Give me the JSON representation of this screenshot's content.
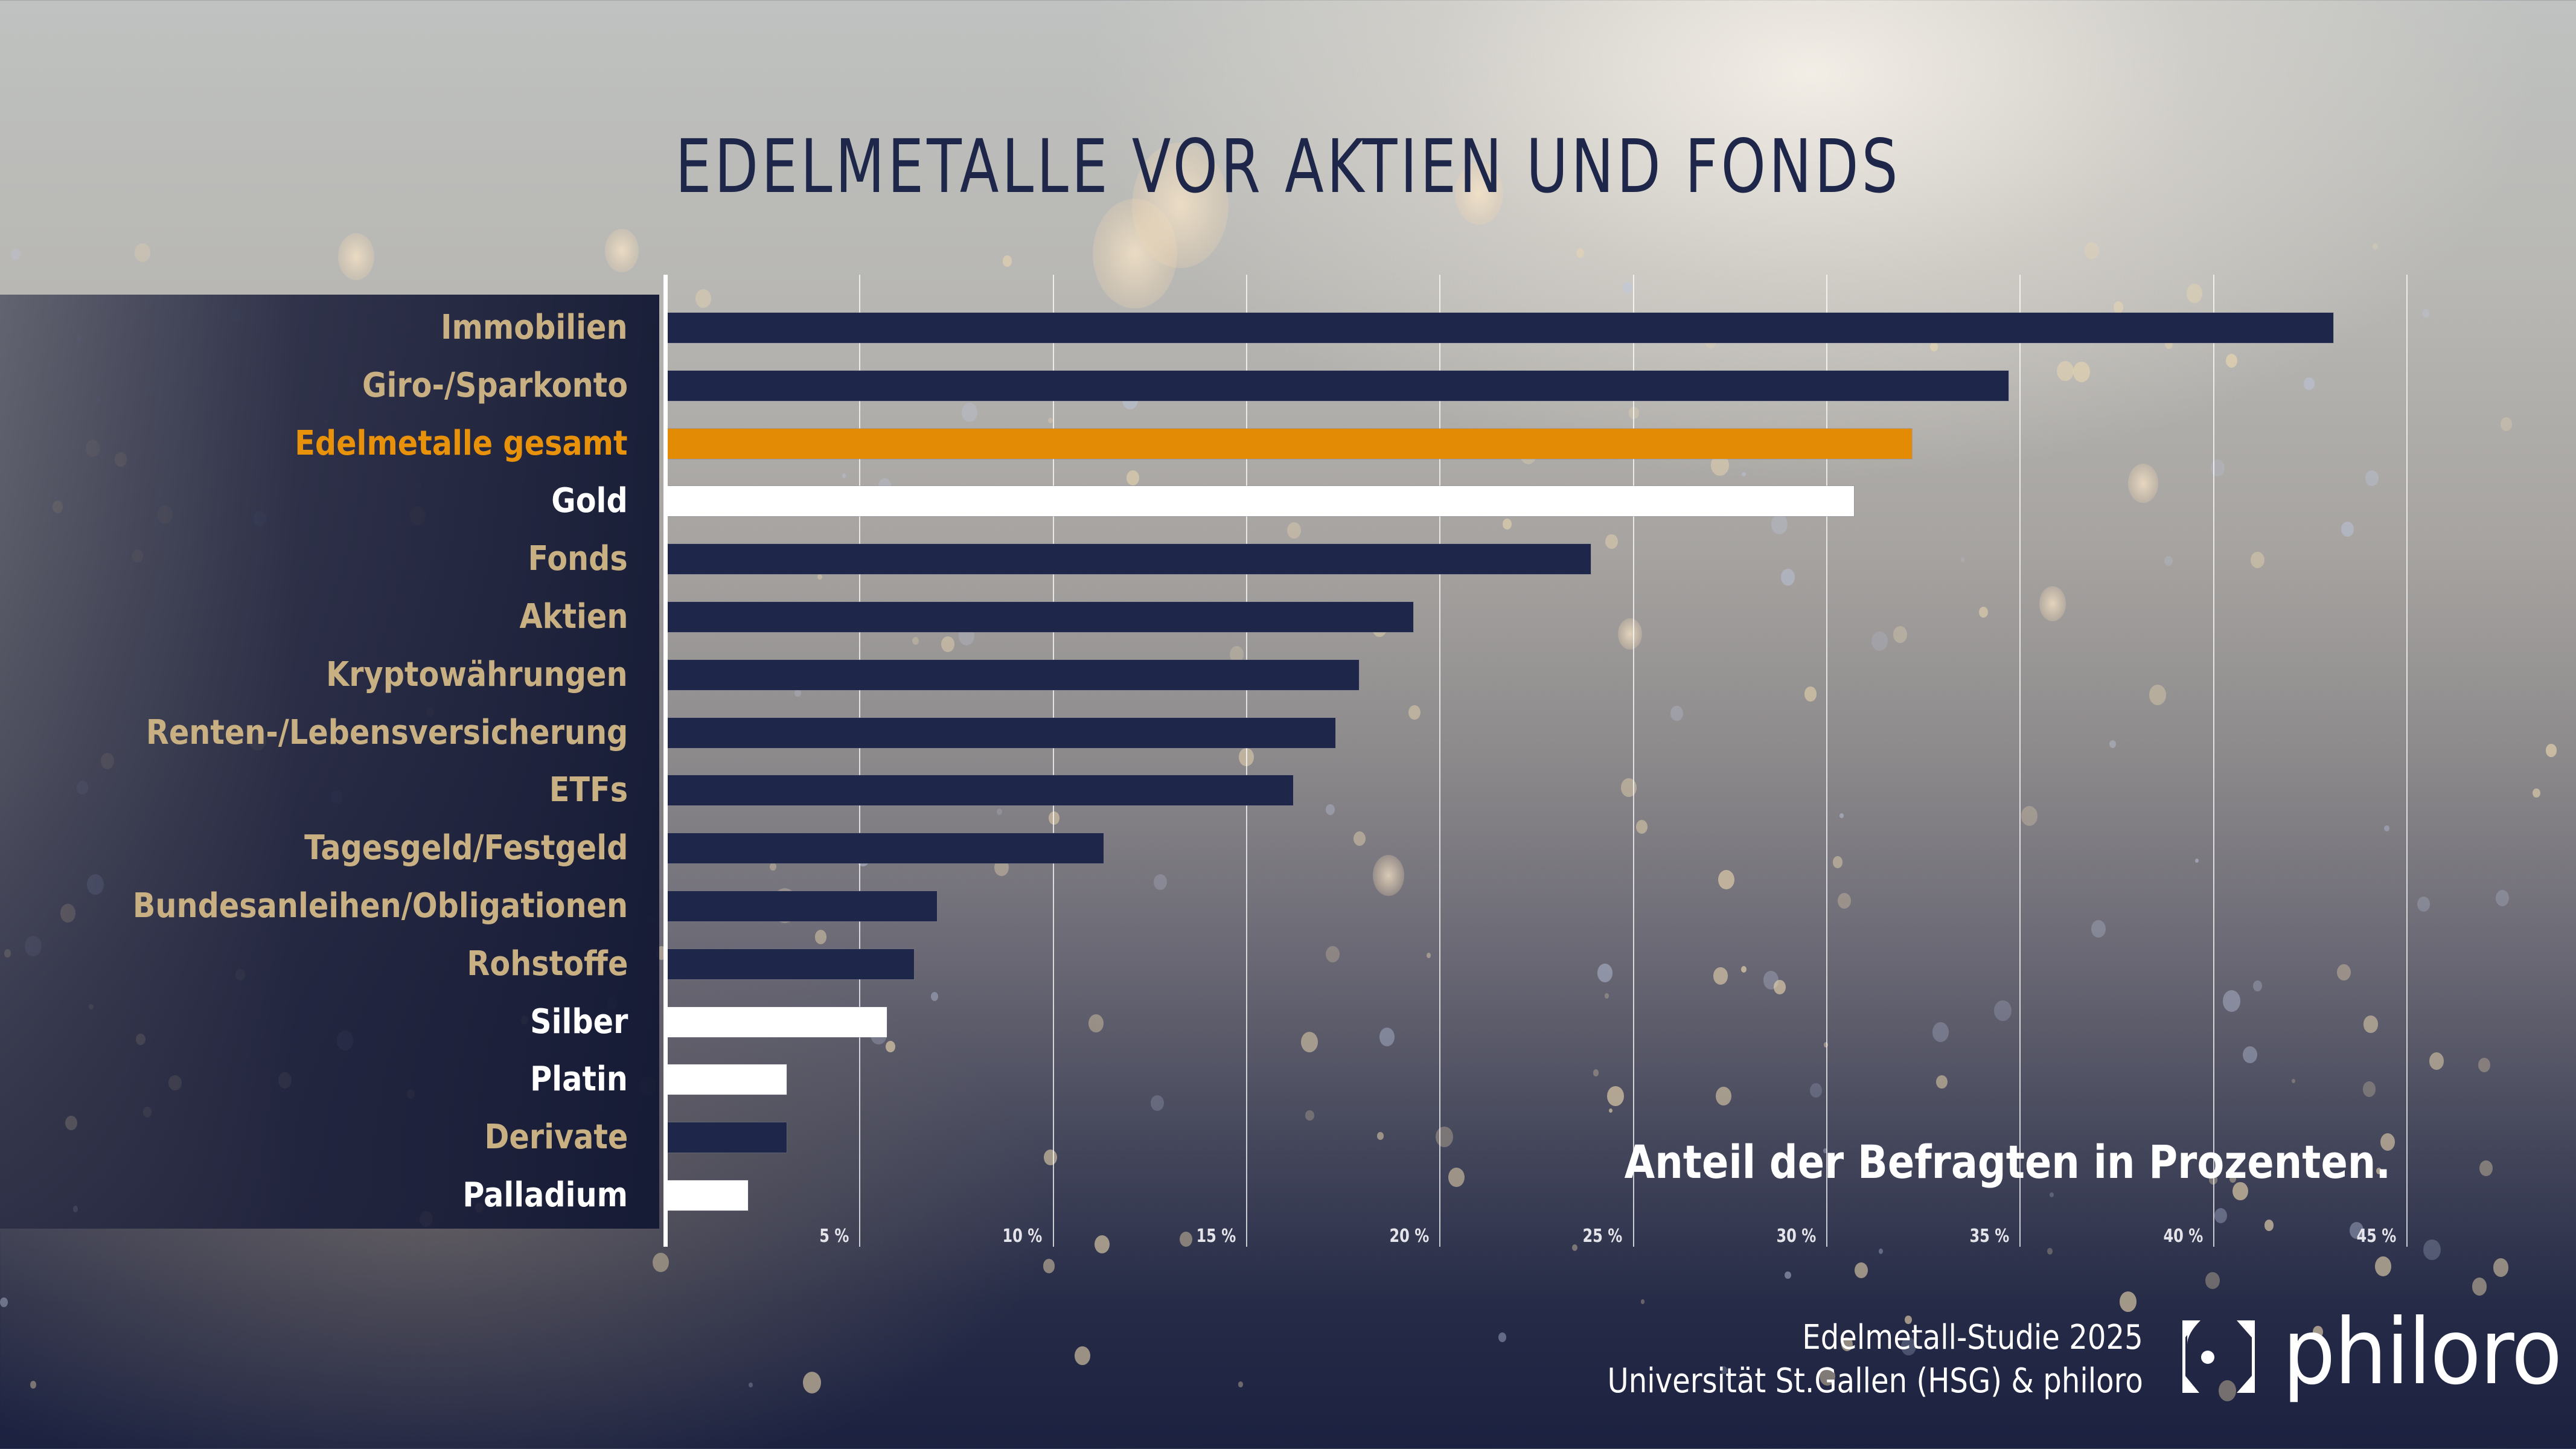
{
  "header": {
    "title": "EDELMETALLE VOR AKTIEN UND FONDS"
  },
  "annotation": "Anteil der Befragten in Prozenten.",
  "footer": {
    "line1": "Edelmetall-Studie 2025",
    "line2": "Universität St.Gallen (HSG) & philoro"
  },
  "logo": {
    "icon": "philoro-bracket-dot-icon",
    "wordmark": "philoro"
  },
  "colors": {
    "navy": "#1e2749",
    "orange": "#e38b04",
    "white": "#ffffff",
    "label_gold": "#c9b083",
    "label_orange": "#e8910a",
    "label_white": "#ffffff"
  },
  "chart_data": {
    "type": "bar",
    "orientation": "horizontal",
    "title": "EDELMETALLE VOR AKTIEN UND FONDS",
    "xlabel": "Anteil der Befragten in Prozenten.",
    "ylabel": "",
    "xlim": [
      0,
      45
    ],
    "grid": true,
    "x_ticks": [
      5,
      10,
      15,
      20,
      25,
      30,
      35,
      40,
      45
    ],
    "x_tick_labels": [
      "5 %",
      "10 %",
      "15 %",
      "20 %",
      "25 %",
      "30 %",
      "35 %",
      "40 %",
      "45 %"
    ],
    "categories": [
      "Immobilien",
      "Giro-/Sparkonto",
      "Edelmetalle gesamt",
      "Gold",
      "Fonds",
      "Aktien",
      "Kryptowährungen",
      "Renten-/Lebensversicherung",
      "ETFs",
      "Tagesgeld/Festgeld",
      "Bundesanleihen/Obligationen",
      "Rohstoffe",
      "Silber",
      "Platin",
      "Derivate",
      "Palladium"
    ],
    "values": [
      43.1,
      34.7,
      32.2,
      30.7,
      23.9,
      19.3,
      17.9,
      17.3,
      16.2,
      11.3,
      7.0,
      6.4,
      5.7,
      3.1,
      3.1,
      2.1
    ],
    "bar_styles": [
      "navy",
      "navy",
      "orange",
      "white",
      "navy",
      "navy",
      "navy",
      "navy",
      "navy",
      "navy",
      "navy",
      "navy",
      "white",
      "white",
      "navy",
      "white"
    ],
    "legend": "none"
  }
}
